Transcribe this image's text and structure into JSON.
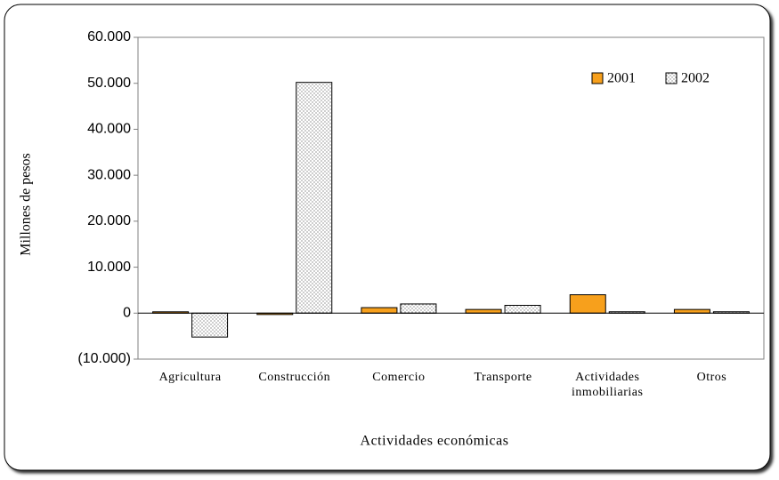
{
  "chart_data": {
    "type": "bar",
    "xlabel": "Actividades económicas",
    "ylabel": "Millones de pesos",
    "categories": [
      "Agricultura",
      "Construcción",
      "Comercio",
      "Transporte",
      "Actividades inmobiliarias",
      "Otros"
    ],
    "series": [
      {
        "name": "2001",
        "color": "#f7a01c",
        "values": [
          0,
          -300,
          1200,
          800,
          4000,
          800
        ]
      },
      {
        "name": "2002",
        "color": "#ffffff",
        "pattern": "dots",
        "values": [
          -5200,
          50200,
          2000,
          1700,
          300,
          300
        ]
      }
    ],
    "ylim": [
      -10000,
      60000
    ],
    "yticks": [
      {
        "value": -10000,
        "label": "(10.000)"
      },
      0,
      {
        "value": 10000,
        "label": "10.000"
      },
      {
        "value": 20000,
        "label": "20.000"
      },
      {
        "value": 30000,
        "label": "30.000"
      },
      {
        "value": 40000,
        "label": "40.000"
      },
      {
        "value": 50000,
        "label": "50.000"
      },
      {
        "value": 60000,
        "label": "60.000"
      }
    ],
    "grid": false,
    "legend": "upper right"
  }
}
